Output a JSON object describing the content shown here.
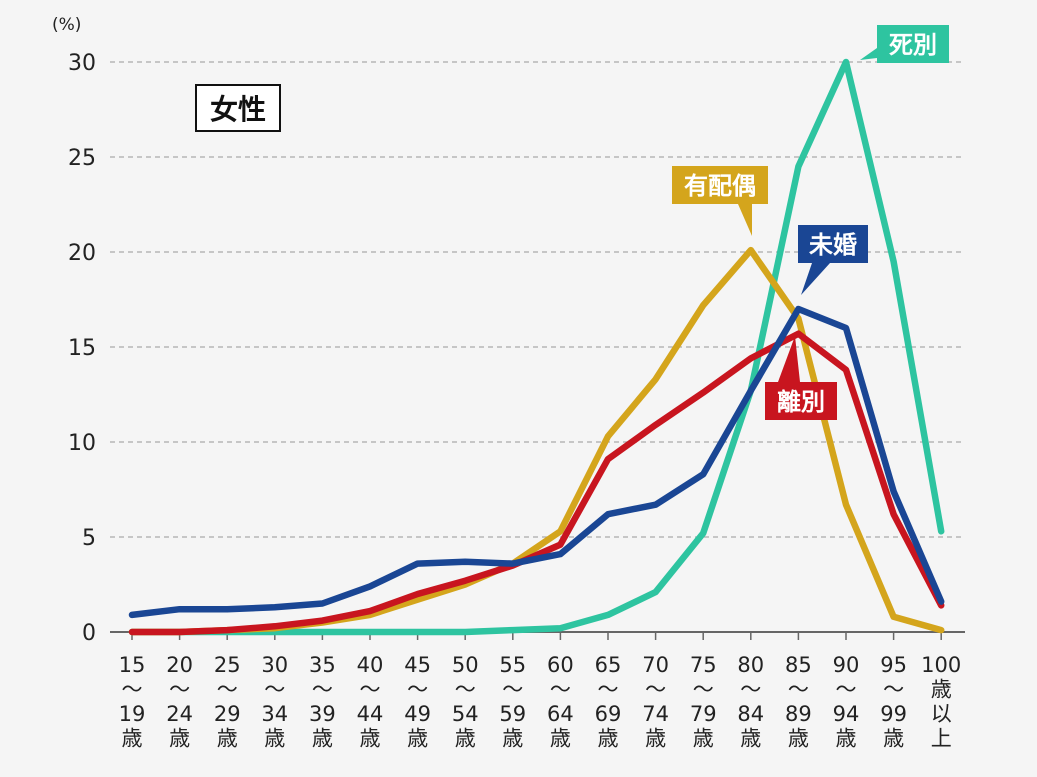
{
  "chart_data": {
    "type": "line",
    "title": "",
    "panel_label": "女性",
    "ylabel": "(%)",
    "xlabel": "",
    "ylim": [
      0,
      30
    ],
    "yticks": [
      0,
      5,
      10,
      15,
      20,
      25,
      30
    ],
    "grid": true,
    "categories": [
      "15〜19歳",
      "20〜24歳",
      "25〜29歳",
      "30〜34歳",
      "35〜39歳",
      "40〜44歳",
      "45〜49歳",
      "50〜54歳",
      "55〜59歳",
      "60〜64歳",
      "65〜69歳",
      "70〜74歳",
      "75〜79歳",
      "80〜84歳",
      "85〜89歳",
      "90〜94歳",
      "95〜99歳",
      "100歳以上"
    ],
    "category_lines": [
      [
        "15",
        "〜",
        "19",
        "歳"
      ],
      [
        "20",
        "〜",
        "24",
        "歳"
      ],
      [
        "25",
        "〜",
        "29",
        "歳"
      ],
      [
        "30",
        "〜",
        "34",
        "歳"
      ],
      [
        "35",
        "〜",
        "39",
        "歳"
      ],
      [
        "40",
        "〜",
        "44",
        "歳"
      ],
      [
        "45",
        "〜",
        "49",
        "歳"
      ],
      [
        "50",
        "〜",
        "54",
        "歳"
      ],
      [
        "55",
        "〜",
        "59",
        "歳"
      ],
      [
        "60",
        "〜",
        "64",
        "歳"
      ],
      [
        "65",
        "〜",
        "69",
        "歳"
      ],
      [
        "70",
        "〜",
        "74",
        "歳"
      ],
      [
        "75",
        "〜",
        "79",
        "歳"
      ],
      [
        "80",
        "〜",
        "84",
        "歳"
      ],
      [
        "85",
        "〜",
        "89",
        "歳"
      ],
      [
        "90",
        "〜",
        "94",
        "歳"
      ],
      [
        "95",
        "〜",
        "99",
        "歳"
      ],
      [
        "100",
        "歳",
        "以",
        "上"
      ]
    ],
    "series": [
      {
        "name": "死別",
        "color": "#2ec4a0",
        "values": [
          0,
          0,
          0,
          0,
          0,
          0,
          0,
          0,
          0.1,
          0.2,
          0.9,
          2.1,
          5.2,
          12.7,
          24.5,
          30.0,
          19.5,
          5.3
        ]
      },
      {
        "name": "有配偶",
        "color": "#d4a51c",
        "values": [
          0,
          0,
          0.1,
          0.2,
          0.5,
          0.9,
          1.7,
          2.5,
          3.6,
          5.3,
          10.3,
          13.3,
          17.2,
          20.1,
          16.5,
          6.7,
          0.8,
          0.1
        ]
      },
      {
        "name": "離別",
        "color": "#c8151f",
        "values": [
          0,
          0,
          0.1,
          0.3,
          0.6,
          1.1,
          2.0,
          2.7,
          3.5,
          4.6,
          9.1,
          10.9,
          12.6,
          14.4,
          15.7,
          13.8,
          6.2,
          1.4
        ]
      },
      {
        "name": "未婚",
        "color": "#1a4694",
        "values": [
          0.9,
          1.2,
          1.2,
          1.3,
          1.5,
          2.4,
          3.6,
          3.7,
          3.6,
          4.1,
          6.2,
          6.7,
          8.3,
          12.7,
          17.0,
          16.0,
          7.4,
          1.6
        ]
      }
    ]
  }
}
